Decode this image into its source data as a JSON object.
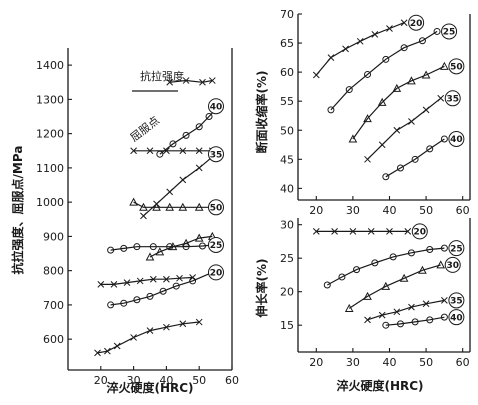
{
  "chart_data": [
    {
      "id": "left",
      "type": "line",
      "xlabel": "淬火硬度(HRC)",
      "ylabel": "抗拉强度、屈服点/MPa",
      "xlim": [
        10,
        60
      ],
      "ylim": [
        510,
        1450
      ],
      "xticks": [
        20,
        30,
        40,
        50,
        60
      ],
      "yticks": [
        600,
        700,
        800,
        900,
        1000,
        1100,
        1200,
        1300,
        1400
      ],
      "annotations": [
        "抗拉强度",
        "屈服点"
      ],
      "series": [
        {
          "name": "40",
          "role": "tensile",
          "marker": "circle",
          "x": [
            38,
            42,
            46,
            50,
            53,
            56
          ],
          "y": [
            1140,
            1170,
            1195,
            1220,
            1250,
            1280
          ]
        },
        {
          "name": "40",
          "role": "yield",
          "marker": "cross",
          "x": [
            41,
            46,
            51,
            54
          ],
          "y": [
            1350,
            1355,
            1350,
            1355
          ]
        },
        {
          "name": "35",
          "role": "tensile",
          "marker": "cross",
          "x": [
            33,
            37,
            41,
            45,
            50,
            55
          ],
          "y": [
            960,
            995,
            1030,
            1065,
            1100,
            1140
          ]
        },
        {
          "name": "35",
          "role": "yield",
          "marker": "cross",
          "x": [
            30,
            35,
            40,
            45,
            50,
            54
          ],
          "y": [
            1150,
            1150,
            1150,
            1150,
            1150,
            1150
          ]
        },
        {
          "name": "50",
          "role": "tensile",
          "marker": "triangle",
          "x": [
            30,
            33,
            37,
            41,
            45,
            50,
            55
          ],
          "y": [
            1000,
            985,
            985,
            985,
            985,
            985,
            985
          ]
        },
        {
          "name": "50",
          "role": "yield",
          "marker": "triangle",
          "x": [
            35,
            38,
            42,
            46,
            50,
            54
          ],
          "y": [
            840,
            855,
            870,
            880,
            895,
            900
          ]
        },
        {
          "name": "25",
          "role": "tensile",
          "marker": "circle",
          "x": [
            23,
            27,
            31,
            36,
            41,
            46,
            51,
            54
          ],
          "y": [
            860,
            865,
            870,
            870,
            870,
            870,
            872,
            875
          ]
        },
        {
          "name": "25",
          "role": "yield",
          "marker": "cross",
          "x": [
            20,
            24,
            28,
            32,
            36,
            40,
            44,
            48
          ],
          "y": [
            760,
            760,
            765,
            770,
            775,
            775,
            778,
            780
          ]
        },
        {
          "name": "20",
          "role": "tensile",
          "marker": "circle",
          "x": [
            23,
            27,
            31,
            35,
            39,
            43,
            48,
            54
          ],
          "y": [
            700,
            705,
            715,
            725,
            740,
            755,
            770,
            795
          ]
        },
        {
          "name": "20",
          "role": "yield",
          "marker": "cross",
          "x": [
            19,
            22,
            25,
            30,
            35,
            40,
            45,
            50
          ],
          "y": [
            560,
            565,
            580,
            605,
            625,
            635,
            645,
            650
          ]
        }
      ]
    },
    {
      "id": "right-top",
      "type": "line",
      "xlabel": "",
      "ylabel": "断面收缩率(%)",
      "xlim": [
        15,
        62
      ],
      "ylim": [
        38,
        70
      ],
      "xticks": [
        20,
        30,
        40,
        50,
        60
      ],
      "yticks": [
        40,
        45,
        50,
        55,
        60,
        65,
        70
      ],
      "series": [
        {
          "name": "20",
          "marker": "cross",
          "x": [
            20,
            24,
            28,
            32,
            36,
            40,
            44
          ],
          "y": [
            59.5,
            62.5,
            64.0,
            65.3,
            66.5,
            67.5,
            68.5
          ]
        },
        {
          "name": "25",
          "marker": "circle",
          "x": [
            24,
            29,
            34,
            39,
            44,
            49,
            53
          ],
          "y": [
            53.5,
            57.0,
            59.6,
            62.2,
            64.2,
            65.4,
            67.0
          ]
        },
        {
          "name": "50",
          "marker": "triangle",
          "x": [
            30,
            34,
            38,
            42,
            46,
            50,
            55
          ],
          "y": [
            48.5,
            52.0,
            54.8,
            57.2,
            58.5,
            59.5,
            61.0
          ]
        },
        {
          "name": "35",
          "marker": "cross",
          "x": [
            34,
            38,
            42,
            46,
            50,
            54
          ],
          "y": [
            45.0,
            47.5,
            50.0,
            51.5,
            53.5,
            55.5
          ]
        },
        {
          "name": "40",
          "marker": "circle",
          "x": [
            39,
            43,
            47,
            51,
            55
          ],
          "y": [
            42.0,
            43.5,
            45.0,
            46.8,
            48.5
          ]
        }
      ]
    },
    {
      "id": "right-bottom",
      "type": "line",
      "xlabel": "淬火硬度(HRC)",
      "ylabel": "伸长率(%)",
      "xlim": [
        15,
        62
      ],
      "ylim": [
        11,
        31
      ],
      "xticks": [
        20,
        30,
        40,
        50,
        60
      ],
      "yticks": [
        15,
        20,
        25,
        30
      ],
      "series": [
        {
          "name": "20",
          "marker": "cross",
          "x": [
            20,
            25,
            30,
            35,
            40,
            45
          ],
          "y": [
            29,
            29,
            29,
            29,
            29,
            29
          ]
        },
        {
          "name": "25",
          "marker": "circle",
          "x": [
            23,
            27,
            31,
            36,
            41,
            46,
            51,
            55
          ],
          "y": [
            21.0,
            22.2,
            23.3,
            24.3,
            25.2,
            25.8,
            26.3,
            26.5
          ]
        },
        {
          "name": "30",
          "marker": "triangle",
          "x": [
            29,
            34,
            39,
            44,
            49,
            54
          ],
          "y": [
            17.5,
            19.3,
            20.8,
            22.0,
            23.2,
            24.0
          ]
        },
        {
          "name": "35",
          "marker": "cross",
          "x": [
            34,
            38,
            42,
            46,
            50,
            55
          ],
          "y": [
            15.8,
            16.5,
            17.0,
            17.7,
            18.2,
            18.7
          ]
        },
        {
          "name": "40",
          "marker": "circle",
          "x": [
            39,
            43,
            47,
            51,
            55
          ],
          "y": [
            15.0,
            15.2,
            15.5,
            15.8,
            16.2
          ]
        }
      ]
    }
  ]
}
